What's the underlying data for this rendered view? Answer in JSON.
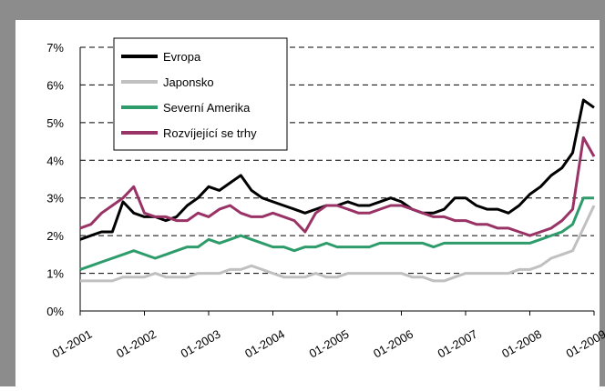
{
  "chart_data": {
    "type": "line",
    "x": [
      "01-2001",
      "03-2001",
      "05-2001",
      "07-2001",
      "09-2001",
      "11-2001",
      "01-2002",
      "03-2002",
      "05-2002",
      "07-2002",
      "09-2002",
      "11-2002",
      "01-2003",
      "03-2003",
      "05-2003",
      "07-2003",
      "09-2003",
      "11-2003",
      "01-2004",
      "03-2004",
      "05-2004",
      "07-2004",
      "09-2004",
      "11-2004",
      "01-2005",
      "03-2005",
      "05-2005",
      "07-2005",
      "09-2005",
      "11-2005",
      "01-2006",
      "03-2006",
      "05-2006",
      "07-2006",
      "09-2006",
      "11-2006",
      "01-2007",
      "03-2007",
      "05-2007",
      "07-2007",
      "09-2007",
      "11-2007",
      "01-2008",
      "03-2008",
      "05-2008",
      "07-2008",
      "09-2008",
      "11-2008",
      "01-2009"
    ],
    "series": [
      {
        "name": "Evropa",
        "color": "#000000",
        "values": [
          1.9,
          2.0,
          2.1,
          2.1,
          2.9,
          2.6,
          2.5,
          2.5,
          2.4,
          2.5,
          2.8,
          3.0,
          3.3,
          3.2,
          3.4,
          3.6,
          3.2,
          3.0,
          2.9,
          2.8,
          2.7,
          2.6,
          2.7,
          2.8,
          2.8,
          2.9,
          2.8,
          2.8,
          2.9,
          3.0,
          2.9,
          2.7,
          2.6,
          2.6,
          2.7,
          3.0,
          3.0,
          2.8,
          2.7,
          2.7,
          2.6,
          2.8,
          3.1,
          3.3,
          3.6,
          3.8,
          4.2,
          5.6,
          5.4
        ]
      },
      {
        "name": "Japonsko",
        "color": "#c0c0c0",
        "values": [
          0.8,
          0.8,
          0.8,
          0.8,
          0.9,
          0.9,
          0.9,
          1.0,
          0.9,
          0.9,
          0.9,
          1.0,
          1.0,
          1.0,
          1.1,
          1.1,
          1.2,
          1.1,
          1.0,
          0.9,
          0.9,
          0.9,
          1.0,
          0.9,
          0.9,
          1.0,
          1.0,
          1.0,
          1.0,
          1.0,
          1.0,
          0.9,
          0.9,
          0.8,
          0.8,
          0.9,
          1.0,
          1.0,
          1.0,
          1.0,
          1.0,
          1.1,
          1.1,
          1.2,
          1.4,
          1.5,
          1.6,
          2.2,
          2.8
        ]
      },
      {
        "name": "Severní Amerika",
        "color": "#2e9b6b",
        "values": [
          1.1,
          1.2,
          1.3,
          1.4,
          1.5,
          1.6,
          1.5,
          1.4,
          1.5,
          1.6,
          1.7,
          1.7,
          1.9,
          1.8,
          1.9,
          2.0,
          1.9,
          1.8,
          1.7,
          1.7,
          1.6,
          1.7,
          1.7,
          1.8,
          1.7,
          1.7,
          1.7,
          1.7,
          1.8,
          1.8,
          1.8,
          1.8,
          1.8,
          1.7,
          1.8,
          1.8,
          1.8,
          1.8,
          1.8,
          1.8,
          1.8,
          1.8,
          1.8,
          1.9,
          2.0,
          2.1,
          2.3,
          3.0,
          3.0
        ]
      },
      {
        "name": "Rozvíjející se trhy",
        "color": "#993366",
        "values": [
          2.2,
          2.3,
          2.6,
          2.8,
          3.0,
          3.3,
          2.6,
          2.5,
          2.5,
          2.4,
          2.4,
          2.6,
          2.5,
          2.7,
          2.8,
          2.6,
          2.5,
          2.5,
          2.6,
          2.5,
          2.4,
          2.1,
          2.6,
          2.8,
          2.8,
          2.7,
          2.6,
          2.6,
          2.7,
          2.8,
          2.8,
          2.7,
          2.6,
          2.5,
          2.5,
          2.4,
          2.4,
          2.3,
          2.3,
          2.2,
          2.2,
          2.1,
          2.0,
          2.1,
          2.2,
          2.4,
          2.7,
          4.6,
          4.1
        ]
      }
    ],
    "xticks": [
      "01-2001",
      "01-2002",
      "01-2003",
      "01-2004",
      "01-2005",
      "01-2006",
      "01-2007",
      "01-2008",
      "01-2009"
    ],
    "ylim": [
      0,
      7
    ],
    "yticks": [
      {
        "value": 0,
        "label": "0%"
      },
      {
        "value": 1,
        "label": "1%"
      },
      {
        "value": 2,
        "label": "2%"
      },
      {
        "value": 3,
        "label": "3%"
      },
      {
        "value": 4,
        "label": "4%"
      },
      {
        "value": 5,
        "label": "5%"
      },
      {
        "value": 6,
        "label": "6%"
      },
      {
        "value": 7,
        "label": "7%"
      }
    ],
    "grid": true,
    "legend": "top-left"
  }
}
